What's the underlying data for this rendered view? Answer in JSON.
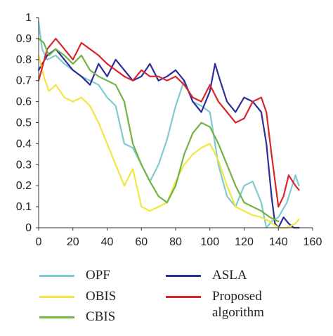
{
  "chart_data": {
    "type": "line",
    "xlim": [
      0,
      160
    ],
    "ylim": [
      0,
      1
    ],
    "xticks": [
      0,
      20,
      40,
      60,
      80,
      100,
      120,
      140,
      160
    ],
    "yticks": [
      0,
      0.1,
      0.2,
      0.3,
      0.4,
      0.5,
      0.6,
      0.7,
      0.8,
      0.9,
      1
    ],
    "xtick_labels": [
      "0",
      "20",
      "40",
      "60",
      "80",
      "100",
      "120",
      "140",
      "160"
    ],
    "ytick_labels": [
      "0",
      "0.1",
      "0.2",
      "0.3",
      "0.4",
      "0.5",
      "0.6",
      "0.7",
      "0.8",
      "0.9",
      "1"
    ],
    "grid": false,
    "legend_position": "bottom",
    "series": [
      {
        "name": "OPF",
        "color": "#7ecbd0",
        "x": [
          0,
          2,
          5,
          10,
          15,
          20,
          25,
          30,
          35,
          40,
          45,
          50,
          55,
          60,
          65,
          70,
          75,
          80,
          85,
          90,
          95,
          100,
          105,
          110,
          115,
          120,
          125,
          130,
          133,
          136,
          140,
          145,
          150,
          152
        ],
        "y": [
          0.98,
          0.85,
          0.8,
          0.82,
          0.78,
          0.75,
          0.72,
          0.7,
          0.68,
          0.62,
          0.58,
          0.4,
          0.38,
          0.3,
          0.22,
          0.3,
          0.42,
          0.58,
          0.7,
          0.6,
          0.58,
          0.55,
          0.3,
          0.15,
          0.1,
          0.2,
          0.22,
          0.12,
          0.0,
          0.03,
          0.05,
          0.12,
          0.25,
          0.2
        ]
      },
      {
        "name": "ASLA",
        "color": "#2e2e96",
        "x": [
          0,
          5,
          10,
          15,
          20,
          25,
          30,
          35,
          40,
          45,
          50,
          55,
          60,
          65,
          70,
          75,
          80,
          85,
          90,
          95,
          100,
          103,
          106,
          110,
          115,
          120,
          125,
          130,
          133,
          136,
          138,
          140,
          143,
          146,
          149,
          152
        ],
        "y": [
          0.75,
          0.82,
          0.85,
          0.8,
          0.75,
          0.72,
          0.68,
          0.78,
          0.72,
          0.8,
          0.75,
          0.7,
          0.72,
          0.78,
          0.7,
          0.72,
          0.75,
          0.7,
          0.6,
          0.55,
          0.65,
          0.78,
          0.7,
          0.6,
          0.55,
          0.62,
          0.6,
          0.55,
          0.4,
          0.15,
          0.02,
          0.0,
          0.05,
          0.02,
          0.0,
          0.0
        ]
      },
      {
        "name": "OBIS",
        "color": "#f2e642",
        "x": [
          0,
          3,
          6,
          10,
          15,
          20,
          25,
          30,
          35,
          40,
          45,
          50,
          55,
          60,
          65,
          70,
          75,
          80,
          85,
          90,
          95,
          100,
          105,
          110,
          115,
          120,
          125,
          130,
          135,
          140,
          145,
          150,
          152
        ],
        "y": [
          0.82,
          0.72,
          0.65,
          0.68,
          0.62,
          0.6,
          0.62,
          0.58,
          0.5,
          0.4,
          0.3,
          0.2,
          0.28,
          0.1,
          0.08,
          0.1,
          0.12,
          0.22,
          0.3,
          0.35,
          0.38,
          0.4,
          0.32,
          0.2,
          0.1,
          0.08,
          0.06,
          0.05,
          0.03,
          0.0,
          0.0,
          0.02,
          0.04
        ]
      },
      {
        "name": "Proposed\nalgorithm",
        "color": "#d9262b",
        "x": [
          0,
          5,
          10,
          15,
          20,
          25,
          30,
          35,
          40,
          45,
          50,
          55,
          60,
          65,
          70,
          75,
          80,
          85,
          90,
          95,
          100,
          105,
          110,
          115,
          120,
          125,
          130,
          133,
          136,
          140,
          143,
          146,
          150,
          152
        ],
        "y": [
          0.7,
          0.85,
          0.9,
          0.85,
          0.8,
          0.88,
          0.85,
          0.82,
          0.78,
          0.75,
          0.72,
          0.7,
          0.75,
          0.72,
          0.72,
          0.7,
          0.72,
          0.68,
          0.62,
          0.6,
          0.68,
          0.6,
          0.55,
          0.5,
          0.52,
          0.6,
          0.62,
          0.55,
          0.35,
          0.1,
          0.15,
          0.25,
          0.2,
          0.18
        ]
      },
      {
        "name": "CBIS",
        "color": "#72b443",
        "x": [
          0,
          3,
          6,
          10,
          15,
          20,
          25,
          30,
          35,
          40,
          45,
          50,
          55,
          60,
          65,
          70,
          75,
          80,
          85,
          90,
          95,
          100,
          105,
          110,
          115,
          120,
          125,
          130,
          135,
          140
        ],
        "y": [
          0.9,
          0.88,
          0.82,
          0.85,
          0.82,
          0.78,
          0.82,
          0.75,
          0.72,
          0.7,
          0.68,
          0.6,
          0.4,
          0.3,
          0.22,
          0.15,
          0.12,
          0.2,
          0.35,
          0.45,
          0.5,
          0.48,
          0.4,
          0.3,
          0.2,
          0.12,
          0.1,
          0.08,
          0.05,
          0.03
        ]
      }
    ]
  },
  "legend": {
    "items": [
      {
        "label": "OPF",
        "color": "#7ecbd0"
      },
      {
        "label": "OBIS",
        "color": "#f2e642"
      },
      {
        "label": "CBIS",
        "color": "#72b443"
      },
      {
        "label": "ASLA",
        "color": "#2e2e96"
      },
      {
        "label": "Proposed\nalgorithm",
        "color": "#d9262b"
      }
    ]
  }
}
